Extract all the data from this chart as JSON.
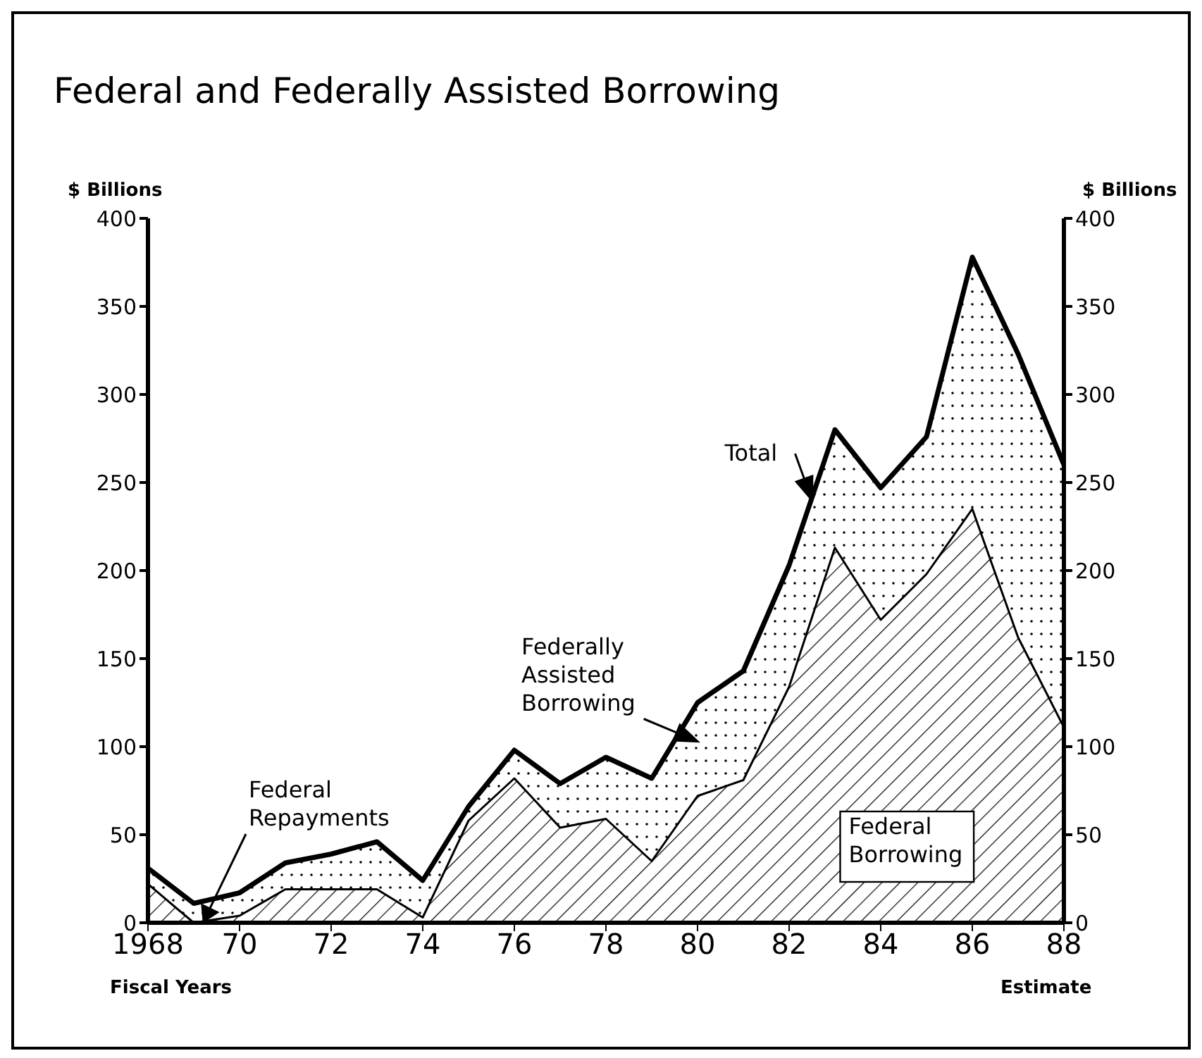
{
  "chart_data": {
    "type": "area",
    "title": "Federal and Federally Assisted Borrowing",
    "ylabel": "$ Billions",
    "y2label": "$ Billions",
    "xlabel": "Fiscal Years",
    "stacked": true,
    "x": [
      1968,
      1969,
      1970,
      1971,
      1972,
      1973,
      1974,
      1975,
      1976,
      1977,
      1978,
      1979,
      1980,
      1981,
      1982,
      1983,
      1984,
      1985,
      1986,
      1987,
      1988
    ],
    "series": [
      {
        "name": "Federal Borrowing",
        "color": "#000000",
        "values": [
          22,
          0,
          4,
          19,
          19,
          19,
          3,
          58,
          82,
          54,
          59,
          35,
          72,
          81,
          134,
          213,
          172,
          198,
          235,
          162,
          111
        ]
      },
      {
        "name": "Federally Assisted Borrowing",
        "color": "#000000",
        "values": [
          9,
          11,
          13,
          15,
          20,
          27,
          21,
          8,
          16,
          25,
          35,
          47,
          53,
          62,
          69,
          67,
          75,
          78,
          143,
          161,
          149
        ]
      }
    ],
    "xlim": [
      1968,
      1988
    ],
    "xticks": [
      {
        "value": 1968,
        "label": "1968"
      },
      {
        "value": 1970,
        "label": "70"
      },
      {
        "value": 1972,
        "label": "72"
      },
      {
        "value": 1974,
        "label": "74"
      },
      {
        "value": 1976,
        "label": "76"
      },
      {
        "value": 1978,
        "label": "78"
      },
      {
        "value": 1980,
        "label": "80"
      },
      {
        "value": 1982,
        "label": "82"
      },
      {
        "value": 1984,
        "label": "84"
      },
      {
        "value": 1986,
        "label": "86"
      },
      {
        "value": 1988,
        "label": "88"
      }
    ],
    "ylim": [
      0,
      400
    ],
    "yticks": [
      0,
      50,
      100,
      150,
      200,
      250,
      300,
      350,
      400
    ],
    "y2lim": [
      0,
      400
    ],
    "y2ticks": [
      0,
      50,
      100,
      150,
      200,
      250,
      300,
      350,
      400
    ],
    "annotations": [
      {
        "text": "Total",
        "x": 1982.5,
        "y": 240
      },
      "Federal Repayments",
      "Estimate"
    ]
  }
}
